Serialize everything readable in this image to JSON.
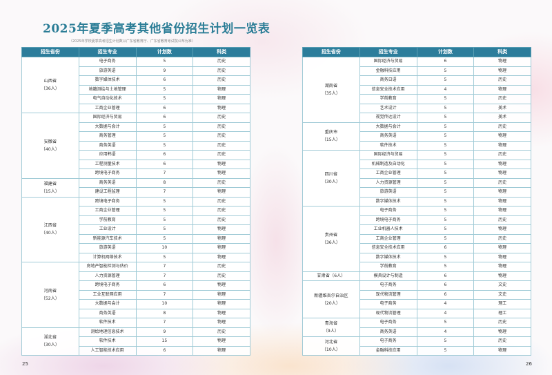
{
  "title": "2025年夏季高考其他省份招生计划一览表",
  "subtitle": "（2025年学校夏季高考招生计划数以广东省教育厅、广东省教育考试院公布为准）",
  "colors": {
    "accent": "#2b7d96",
    "header_bg": "#2c7d9b"
  },
  "columns": [
    "招生省份",
    "招生专业",
    "计划数",
    "科类"
  ],
  "left_table": [
    {
      "province": "山西省",
      "total": "（36人）",
      "rows": [
        [
          "电子商务",
          "5",
          "历史"
        ],
        [
          "旅游英语",
          "9",
          "历史"
        ],
        [
          "数字媒体技术",
          "6",
          "历史"
        ],
        [
          "地籍测绘与土地管理",
          "5",
          "物理"
        ],
        [
          "电气自动化技术",
          "5",
          "物理"
        ],
        [
          "工商企业管理",
          "6",
          "物理"
        ]
      ]
    },
    {
      "province": "安徽省",
      "total": "（40人）",
      "rows": [
        [
          "国际经济与贸易",
          "6",
          "历史"
        ],
        [
          "大数据与会计",
          "5",
          "历史"
        ],
        [
          "商务管理",
          "5",
          "历史"
        ],
        [
          "商务英语",
          "5",
          "历史"
        ],
        [
          "应用韩语",
          "6",
          "历史"
        ],
        [
          "工程测量技术",
          "6",
          "物理"
        ],
        [
          "跨境电子商务",
          "7",
          "物理"
        ]
      ]
    },
    {
      "province": "福建省",
      "total": "（15人）",
      "rows": [
        [
          "商务英语",
          "8",
          "历史"
        ],
        [
          "建设工程监理",
          "7",
          "物理"
        ]
      ]
    },
    {
      "province": "江西省",
      "total": "（40人）",
      "rows": [
        [
          "跨境电子商务",
          "5",
          "历史"
        ],
        [
          "工商企业管理",
          "5",
          "历史"
        ],
        [
          "学前教育",
          "5",
          "历史"
        ],
        [
          "工业设计",
          "5",
          "物理"
        ],
        [
          "新能源汽车技术",
          "5",
          "物理"
        ],
        [
          "旅游英语",
          "10",
          "物理"
        ],
        [
          "计算机网络技术",
          "5",
          "物理"
        ]
      ]
    },
    {
      "province": "河南省",
      "total": "（52人）",
      "rows": [
        [
          "房地产智能检测与估价",
          "7",
          "历史"
        ],
        [
          "人力资源管理",
          "7",
          "历史"
        ],
        [
          "跨境电子商务",
          "6",
          "物理"
        ],
        [
          "工业互联网应用",
          "7",
          "物理"
        ],
        [
          "大数据与会计",
          "10",
          "物理"
        ],
        [
          "商务英语",
          "8",
          "物理"
        ],
        [
          "软件技术",
          "7",
          "物理"
        ]
      ]
    },
    {
      "province": "湖北省",
      "total": "（30人）",
      "rows": [
        [
          "测绘地理信息技术",
          "9",
          "历史"
        ],
        [
          "软件技术",
          "15",
          "物理"
        ],
        [
          "人工智能技术应用",
          "6",
          "物理"
        ]
      ]
    }
  ],
  "right_table": [
    {
      "province": "湖南省",
      "total": "（35人）",
      "rows": [
        [
          "国际经济与贸易",
          "6",
          "物理"
        ],
        [
          "金融科技应用",
          "5",
          "物理"
        ],
        [
          "商务日语",
          "5",
          "历史"
        ],
        [
          "信息安全技术应用",
          "4",
          "物理"
        ],
        [
          "学前教育",
          "5",
          "历史"
        ],
        [
          "艺术设计",
          "5",
          "美术"
        ],
        [
          "视觉传达设计",
          "5",
          "美术"
        ]
      ]
    },
    {
      "province": "重庆市",
      "total": "（15人）",
      "rows": [
        [
          "大数据与会计",
          "5",
          "历史"
        ],
        [
          "商务英语",
          "5",
          "物理"
        ],
        [
          "软件技术",
          "5",
          "物理"
        ]
      ]
    },
    {
      "province": "四川省",
      "total": "（30人）",
      "rows": [
        [
          "国际经济与贸易",
          "5",
          "历史"
        ],
        [
          "机械制造及自动化",
          "5",
          "物理"
        ],
        [
          "工商企业管理",
          "5",
          "物理"
        ],
        [
          "人力资源管理",
          "5",
          "历史"
        ],
        [
          "旅游英语",
          "5",
          "物理"
        ],
        [
          "数字媒体技术",
          "5",
          "物理"
        ]
      ]
    },
    {
      "province": "贵州省",
      "total": "（36人）",
      "rows": [
        [
          "电子商务",
          "5",
          "物理"
        ],
        [
          "跨境电子商务",
          "5",
          "历史"
        ],
        [
          "工业机器人技术",
          "5",
          "物理"
        ],
        [
          "工商企业管理",
          "5",
          "历史"
        ],
        [
          "信息安全技术应用",
          "6",
          "物理"
        ],
        [
          "数字媒体技术",
          "5",
          "物理"
        ],
        [
          "学前教育",
          "5",
          "物理"
        ]
      ]
    },
    {
      "province": "甘肃省（6人）",
      "total": "",
      "rows": [
        [
          "模具设计与制造",
          "6",
          "物理"
        ]
      ]
    },
    {
      "province": "新疆维吾尔自治区",
      "total": "（20人）",
      "rows": [
        [
          "电子商务",
          "6",
          "文史"
        ],
        [
          "现代物流管理",
          "6",
          "文史"
        ],
        [
          "电子商务",
          "4",
          "理工"
        ],
        [
          "现代物流管理",
          "4",
          "理工"
        ]
      ]
    },
    {
      "province": "青海省",
      "total": "（9人）",
      "rows": [
        [
          "电子商务",
          "5",
          "历史"
        ],
        [
          "商务英语",
          "4",
          "物理"
        ]
      ]
    },
    {
      "province": "河北省",
      "total": "（10人）",
      "rows": [
        [
          "电子商务",
          "5",
          "历史"
        ],
        [
          "金融科技应用",
          "5",
          "物理"
        ]
      ]
    }
  ],
  "page_numbers": {
    "left": "25",
    "right": "26"
  }
}
